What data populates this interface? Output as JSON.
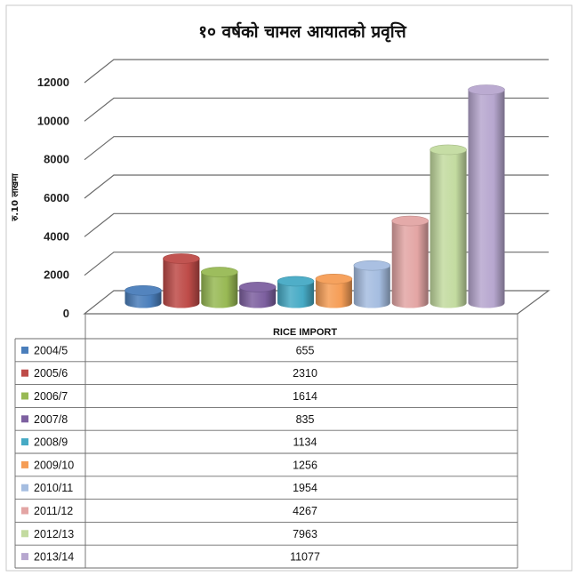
{
  "chart_data": {
    "type": "bar",
    "title": "१० वर्षको चामल आयातको प्रवृत्ति",
    "ylabel": "रु.10 लाखमा",
    "xlabel": "",
    "ylim": [
      0,
      12000
    ],
    "yticks": [
      "0",
      "2000",
      "4000",
      "6000",
      "8000",
      "10000",
      "12000"
    ],
    "grid": true,
    "style": "3d-cylinder",
    "table_header": "RICE IMPORT",
    "categories": [
      "2004/5",
      "2005/6",
      "2006/7",
      "2007/8",
      "2008/9",
      "2009/10",
      "2010/11",
      "2011/12",
      "2012/13",
      "2013/14"
    ],
    "series": [
      {
        "name": "RICE IMPORT",
        "values": [
          655,
          2310,
          1614,
          835,
          1134,
          1256,
          1954,
          4267,
          7963,
          11077
        ]
      }
    ],
    "colors": [
      "#4a7ebb",
      "#be4b48",
      "#98b954",
      "#7d60a0",
      "#46aac5",
      "#f59d56",
      "#a5bde0",
      "#e3a5a4",
      "#c3dba0",
      "#b7a7cf"
    ],
    "grid_color": "#6b6b6b",
    "border_color": "#c8c8c8"
  }
}
